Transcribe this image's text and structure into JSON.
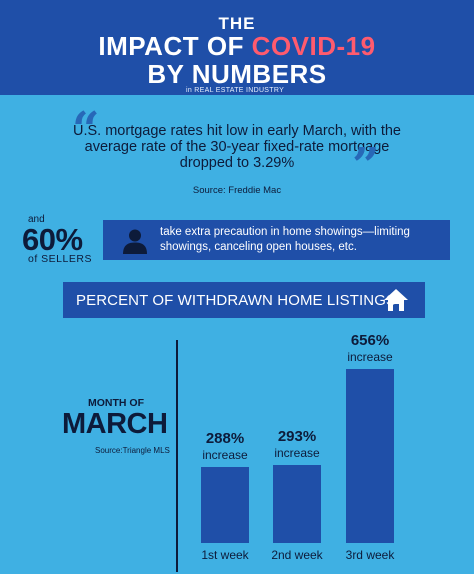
{
  "header": {
    "line1": "THE",
    "line2_prefix": "IMPACT OF ",
    "line2_highlight": "COVID-19",
    "line3": "BY NUMBERS",
    "subtitle": "in REAL ESTATE INDUSTRY",
    "highlight_color": "#ff5b6e"
  },
  "quote": {
    "open_mark": "“",
    "close_mark": "”",
    "text": "U.S. mortgage rates hit low in early March, with the average rate of the 30-year fixed-rate mortgage dropped to 3.29%",
    "source": "Source: Freddie Mac"
  },
  "sellers": {
    "and": "and",
    "percent": "60%",
    "of_sellers": "of SELLERS",
    "text": "take extra precaution in home showings—limiting showings, canceling open houses, etc.",
    "icon": "person-icon"
  },
  "listings": {
    "title": "PERCENT OF WITHDRAWN HOME LISTINGS",
    "icon": "home-icon",
    "month_of": "MONTH OF",
    "month": "MARCH",
    "source": "Source:Triangle MLS"
  },
  "chart_data": {
    "type": "bar",
    "categories": [
      "1st week",
      "2nd week",
      "3rd week"
    ],
    "values": [
      288,
      293,
      656
    ],
    "value_labels": [
      "288%",
      "293%",
      "656%"
    ],
    "value_suffix": "increase"
  },
  "colors": {
    "background": "#3fb0e3",
    "dark_blue": "#1f4fa8",
    "text_dark": "#0d1b3a"
  }
}
